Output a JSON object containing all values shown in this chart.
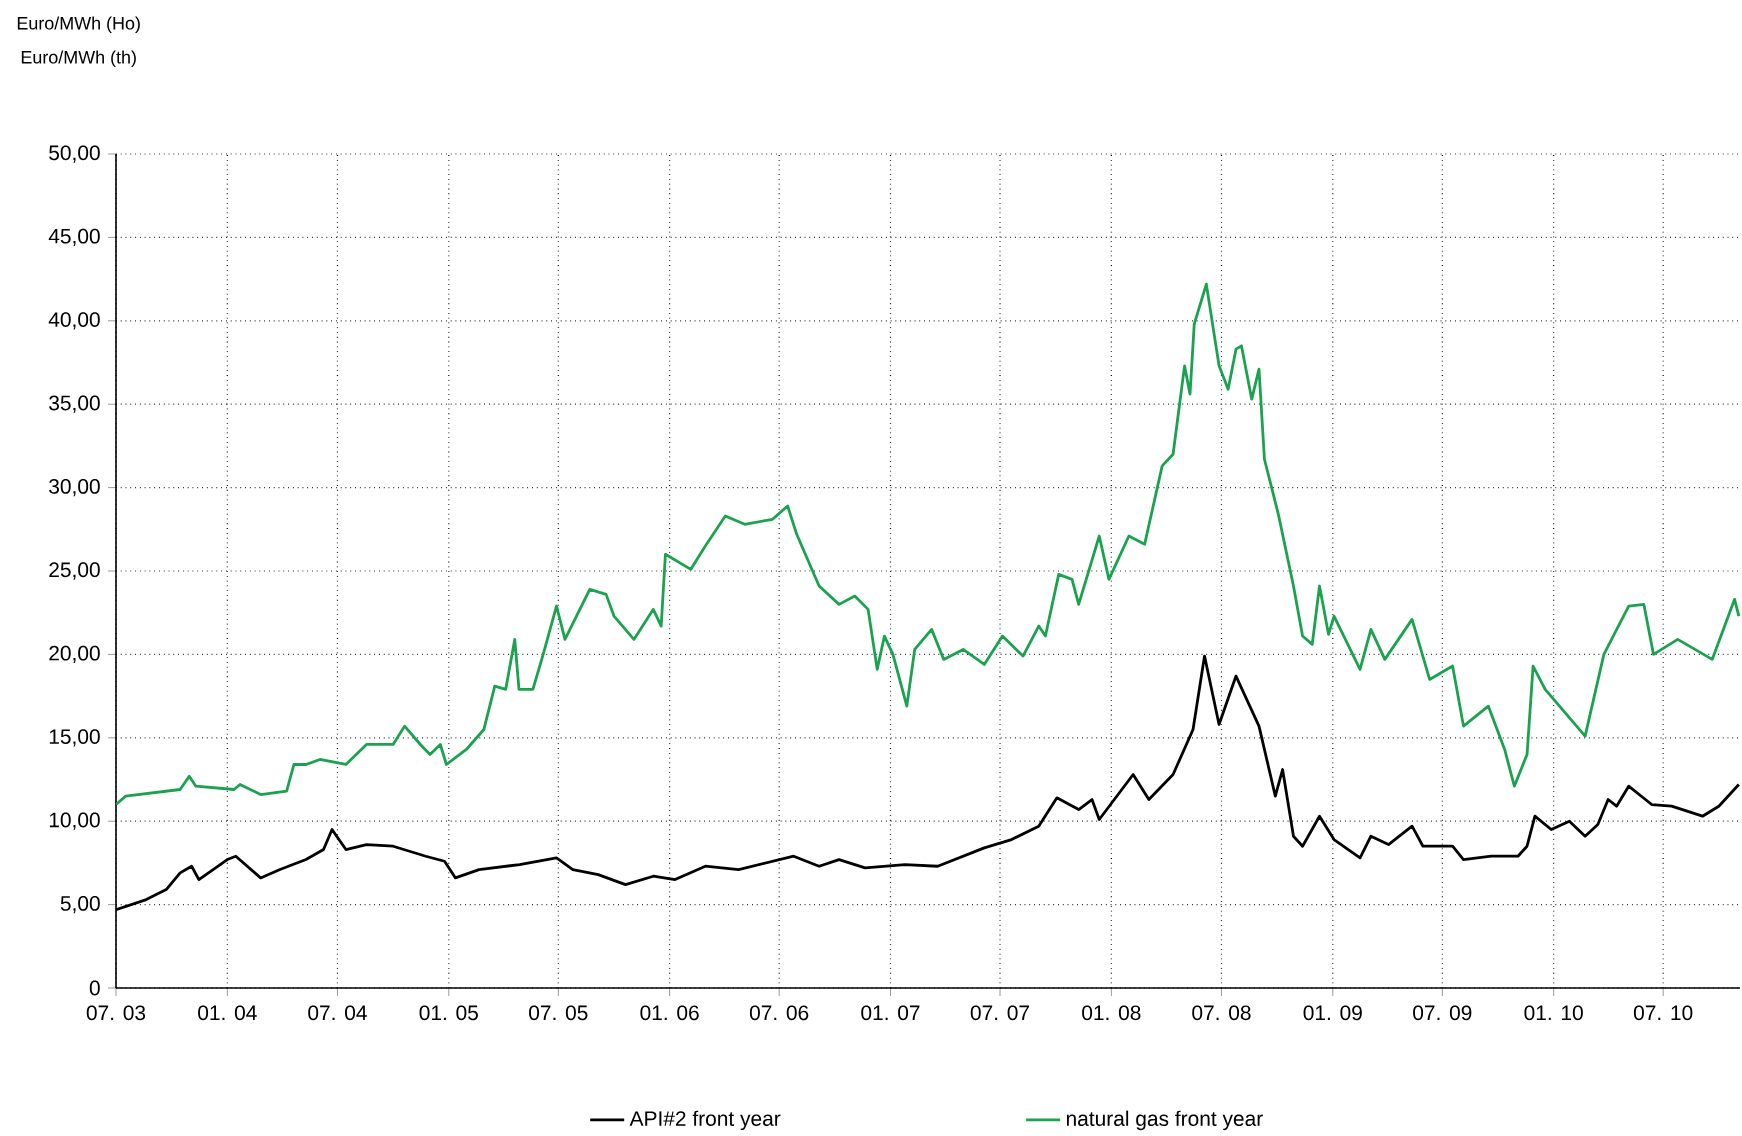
{
  "chart_data": {
    "type": "line",
    "annotations": [
      "Euro/MWh (Ho)",
      "Euro/MWh (th)"
    ],
    "xlim": [
      "2003-07-01",
      "2010-11-05"
    ],
    "ylim": [
      0,
      50
    ],
    "xticks": [
      {
        "value": "2003-07",
        "label": "07. 03"
      },
      {
        "value": "2004-01",
        "label": "01. 04"
      },
      {
        "value": "2004-07",
        "label": "07. 04"
      },
      {
        "value": "2005-01",
        "label": "01. 05"
      },
      {
        "value": "2005-07",
        "label": "07. 05"
      },
      {
        "value": "2006-01",
        "label": "01. 06"
      },
      {
        "value": "2006-07",
        "label": "07. 06"
      },
      {
        "value": "2007-01",
        "label": "01. 07"
      },
      {
        "value": "2007-07",
        "label": "07. 07"
      },
      {
        "value": "2008-01",
        "label": "01. 08"
      },
      {
        "value": "2008-07",
        "label": "07. 08"
      },
      {
        "value": "2009-01",
        "label": "01. 09"
      },
      {
        "value": "2009-07",
        "label": "07. 09"
      },
      {
        "value": "2010-01",
        "label": "01. 10"
      },
      {
        "value": "2010-07",
        "label": "07. 10"
      }
    ],
    "yticks": [
      0,
      {
        "value": 5,
        "label": "5,00"
      },
      {
        "value": 10,
        "label": "10,00"
      },
      {
        "value": 15,
        "label": "15,00"
      },
      {
        "value": 20,
        "label": "20,00"
      },
      {
        "value": 25,
        "label": "25,00"
      },
      {
        "value": 30,
        "label": "30,00"
      },
      {
        "value": 35,
        "label": "35,00"
      },
      {
        "value": 40,
        "label": "40,00"
      },
      {
        "value": 45,
        "label": "45,00"
      },
      {
        "value": 50,
        "label": "50,00"
      }
    ],
    "grid": true,
    "legend": "bottom",
    "marker": "none",
    "line_style": "solid",
    "series": [
      {
        "name": "API#2 front year",
        "color": "#000000",
        "x": [
          "2003-07-01",
          "2003-08-20",
          "2003-09-22",
          "2003-10-15",
          "2003-11-03",
          "2003-11-15",
          "2004-01-01",
          "2004-01-15",
          "2004-02-25",
          "2004-03-28",
          "2004-05-10",
          "2004-06-08",
          "2004-06-22",
          "2004-07-15",
          "2004-08-18",
          "2004-10-01",
          "2004-11-24",
          "2004-12-25",
          "2005-01-12",
          "2005-02-20",
          "2005-04-28",
          "2005-06-28",
          "2005-07-25",
          "2005-09-05",
          "2005-10-20",
          "2005-12-05",
          "2006-01-10",
          "2006-03-01",
          "2006-04-25",
          "2006-07-25",
          "2006-09-05",
          "2006-10-08",
          "2006-11-20",
          "2007-01-25",
          "2007-03-20",
          "2007-06-05",
          "2007-07-20",
          "2007-09-03",
          "2007-10-03",
          "2007-11-08",
          "2007-11-30",
          "2007-12-12",
          "2008-02-06",
          "2008-03-03",
          "2008-04-12",
          "2008-05-15",
          "2008-06-03",
          "2008-06-27",
          "2008-07-25",
          "2008-09-01",
          "2008-09-28",
          "2008-10-10",
          "2008-10-28",
          "2008-11-12",
          "2008-12-10",
          "2009-01-03",
          "2009-02-15",
          "2009-03-05",
          "2009-04-03",
          "2009-05-12",
          "2009-05-30",
          "2009-07-18",
          "2009-08-05",
          "2009-09-20",
          "2009-11-03",
          "2009-11-18",
          "2009-12-01",
          "2009-12-28",
          "2010-01-27",
          "2010-02-22",
          "2010-03-15",
          "2010-04-01",
          "2010-04-15",
          "2010-05-05",
          "2010-06-12",
          "2010-07-15",
          "2010-09-04",
          "2010-10-01",
          "2010-11-03"
        ],
        "values": [
          4.7,
          5.3,
          5.9,
          6.9,
          7.3,
          6.5,
          7.7,
          7.9,
          6.6,
          7.1,
          7.7,
          8.3,
          9.5,
          8.3,
          8.6,
          8.5,
          7.9,
          7.6,
          6.6,
          7.1,
          7.4,
          7.8,
          7.1,
          6.8,
          6.2,
          6.7,
          6.5,
          7.3,
          7.1,
          7.9,
          7.3,
          7.7,
          7.2,
          7.4,
          7.3,
          8.4,
          8.9,
          9.7,
          11.4,
          10.7,
          11.3,
          10.1,
          12.8,
          11.3,
          12.8,
          15.5,
          19.9,
          15.8,
          18.7,
          15.7,
          11.5,
          13.1,
          9.1,
          8.5,
          10.3,
          8.9,
          7.8,
          9.1,
          8.6,
          9.7,
          8.5,
          8.5,
          7.7,
          7.9,
          7.9,
          8.5,
          10.3,
          9.5,
          10.0,
          9.1,
          9.8,
          11.3,
          10.9,
          12.1,
          11.0,
          10.9,
          10.3,
          10.9,
          12.2
        ]
      },
      {
        "name": "natural gas front year",
        "color": "#1ba24f",
        "x": [
          "2003-07-01",
          "2003-07-17",
          "2003-10-15",
          "2003-10-30",
          "2003-11-10",
          "2004-01-12",
          "2004-01-22",
          "2004-02-25",
          "2004-04-08",
          "2004-04-20",
          "2004-05-10",
          "2004-06-02",
          "2004-07-15",
          "2004-08-18",
          "2004-10-01",
          "2004-10-20",
          "2004-11-15",
          "2004-12-01",
          "2004-12-18",
          "2004-12-28",
          "2005-01-30",
          "2005-02-28",
          "2005-03-18",
          "2005-04-05",
          "2005-04-20",
          "2005-04-27",
          "2005-05-20",
          "2005-06-06",
          "2005-06-28",
          "2005-07-12",
          "2005-08-22",
          "2005-09-18",
          "2005-10-01",
          "2005-11-03",
          "2005-12-05",
          "2005-12-18",
          "2005-12-25",
          "2006-02-05",
          "2006-03-01",
          "2006-04-03",
          "2006-05-05",
          "2006-06-20",
          "2006-07-15",
          "2006-07-30",
          "2006-09-05",
          "2006-10-08",
          "2006-11-03",
          "2006-11-25",
          "2006-12-10",
          "2006-12-22",
          "2007-01-05",
          "2007-01-28",
          "2007-02-10",
          "2007-03-10",
          "2007-03-30",
          "2007-05-01",
          "2007-06-05",
          "2007-07-05",
          "2007-08-08",
          "2007-09-03",
          "2007-09-14",
          "2007-10-06",
          "2007-10-28",
          "2007-11-08",
          "2007-12-12",
          "2007-12-28",
          "2008-01-30",
          "2008-02-25",
          "2008-03-25",
          "2008-04-12",
          "2008-05-01",
          "2008-05-10",
          "2008-05-17",
          "2008-06-06",
          "2008-06-27",
          "2008-07-12",
          "2008-07-25",
          "2008-08-03",
          "2008-08-20",
          "2008-09-01",
          "2008-09-10",
          "2008-10-03",
          "2008-10-28",
          "2008-11-12",
          "2008-11-28",
          "2008-12-10",
          "2008-12-25",
          "2009-01-03",
          "2009-02-15",
          "2009-03-05",
          "2009-03-28",
          "2009-05-12",
          "2009-06-10",
          "2009-07-18",
          "2009-08-05",
          "2009-09-15",
          "2009-10-12",
          "2009-10-28",
          "2009-11-18",
          "2009-11-28",
          "2009-12-18",
          "2010-02-22",
          "2010-03-25",
          "2010-05-05",
          "2010-05-30",
          "2010-06-15",
          "2010-07-25",
          "2010-09-20",
          "2010-10-27",
          "2010-11-03"
        ],
        "values": [
          11.0,
          11.5,
          11.9,
          12.7,
          12.1,
          11.9,
          12.2,
          11.6,
          11.8,
          13.4,
          13.4,
          13.7,
          13.4,
          14.6,
          14.6,
          15.7,
          14.6,
          14.0,
          14.6,
          13.4,
          14.3,
          15.5,
          18.1,
          17.9,
          20.9,
          17.9,
          17.9,
          20.0,
          22.9,
          20.9,
          23.9,
          23.6,
          22.3,
          20.9,
          22.7,
          21.7,
          26.0,
          25.1,
          26.5,
          28.3,
          27.8,
          28.1,
          28.9,
          27.2,
          24.1,
          23.0,
          23.5,
          22.7,
          19.1,
          21.1,
          20.0,
          16.9,
          20.3,
          21.5,
          19.7,
          20.3,
          19.4,
          21.1,
          19.9,
          21.7,
          21.1,
          24.8,
          24.5,
          23.0,
          27.1,
          24.5,
          27.1,
          26.6,
          31.3,
          32.0,
          37.3,
          35.6,
          39.8,
          42.2,
          37.3,
          35.9,
          38.3,
          38.5,
          35.3,
          37.1,
          31.7,
          28.4,
          24.1,
          21.1,
          20.6,
          24.1,
          21.2,
          22.3,
          19.1,
          21.5,
          19.7,
          22.1,
          18.5,
          19.3,
          15.7,
          16.9,
          14.3,
          12.1,
          14.0,
          19.3,
          17.9,
          15.1,
          20.0,
          22.9,
          23.0,
          20.0,
          20.9,
          19.7,
          23.3,
          22.3
        ]
      }
    ]
  }
}
